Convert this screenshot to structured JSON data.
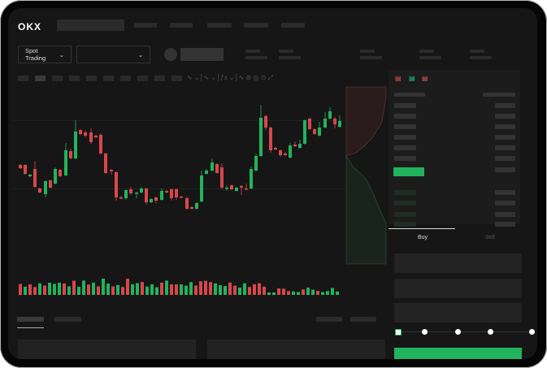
{
  "brand": {
    "logo_text": "OKX"
  },
  "toolbar": {
    "market_selector_label": "Spot Trading",
    "pair_selector_value": ""
  },
  "order_form": {
    "tabs": [
      {
        "label": "Buy",
        "active": true
      },
      {
        "label": "Sell",
        "active": false
      }
    ],
    "leverage_slider_value": 0,
    "submit_color": "#22b35e"
  },
  "colors": {
    "up": "#22b35e",
    "down": "#d8474b",
    "background": "#161616"
  },
  "icons": [
    "chevron-down-icon",
    "indicator-icon",
    "line-tool-icon",
    "pen-icon",
    "screenshot-icon",
    "settings-icon",
    "fullscreen-icon",
    "orderbook-both-icon",
    "orderbook-bids-icon",
    "orderbook-asks-icon"
  ]
}
